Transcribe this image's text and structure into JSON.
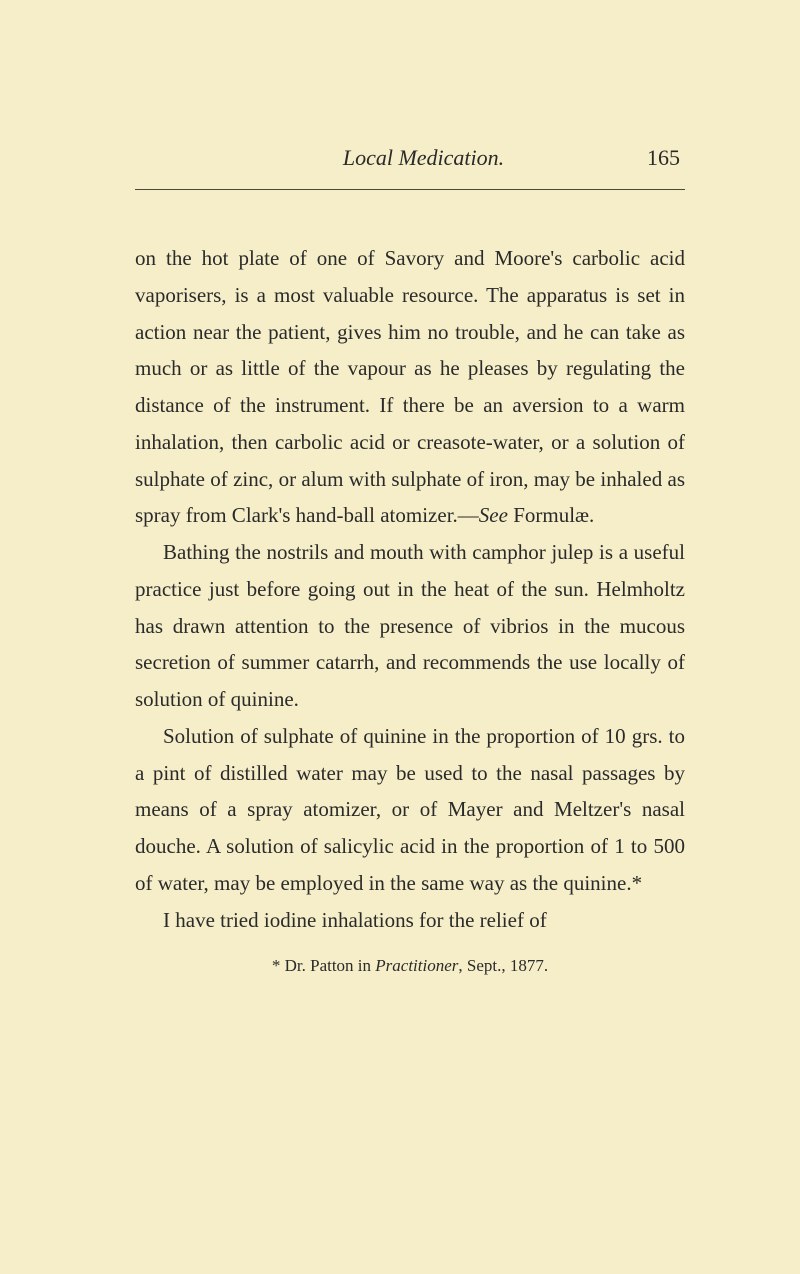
{
  "header": {
    "title": "Local Medication.",
    "page_number": "165"
  },
  "paragraphs": {
    "p1": "on the hot plate of one of Savory and Moore's car­bolic acid vaporisers, is a most valuable resource. The apparatus is set in action near the patient, gives him no trouble, and he can take as much or as little of the vapour as he pleases by regulating the distance of the instrument. If there be an aversion to a warm inhalation, then carbolic acid or creasote-water, or a solution of sulphate of zinc, or alum with sulphate of iron, may be inhaled as spray from Clark's hand-ball atomizer.—",
    "p1_see": "See",
    "p1_end": " For­mulæ.",
    "p2": "Bathing the nostrils and mouth with camphor julep is a useful practice just before going out in the heat of the sun. Helmholtz has drawn atten­tion to the presence of vibrios in the mucous secretion of summer catarrh, and recommends the use locally of solution of quinine.",
    "p3": "Solution of sulphate of quinine in the proportion of 10 grs. to a pint of distilled water may be used to the nasal passages by means of a spray atomizer, or of Mayer and Meltzer's nasal douche. A solu­tion of salicylic acid in the proportion of 1 to 500 of water, may be employed in the same way as the quinine.*",
    "p4": "I have tried iodine inhalations for the relief of"
  },
  "footnote": {
    "prefix": "* Dr. Patton in ",
    "title": "Practitioner",
    "suffix": ", Sept., 1877."
  },
  "colors": {
    "background": "#f5eec8",
    "text": "#2a2a2a",
    "rule": "#4a4a3a"
  },
  "typography": {
    "body_fontsize": 21,
    "header_fontsize": 22,
    "footnote_fontsize": 17,
    "line_height": 1.75
  }
}
